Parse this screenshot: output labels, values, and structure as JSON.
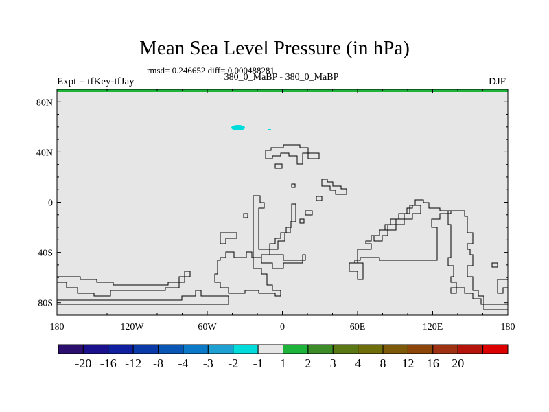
{
  "title": "Mean Sea Level Pressure (in hPa)",
  "stats": "rmsd= 0.246652 diff= 0.000488281",
  "subtitle": "380_0_MaBP - 380_0_MaBP",
  "left_label": "Expt = tfKey-tfJay",
  "right_label": "DJF",
  "map": {
    "background_color": "#e6e6e6",
    "coast_color": "#000000",
    "x_ticks": [
      "180",
      "120W",
      "60W",
      "0",
      "60E",
      "120E",
      "180"
    ],
    "y_ticks": [
      "80N",
      "40N",
      "0",
      "40S",
      "80S"
    ]
  },
  "colorbar": {
    "colors": [
      "#2c0e6e",
      "#1a0f8c",
      "#101ea0",
      "#0a3aa8",
      "#0a56b4",
      "#0a7ac8",
      "#1ea0d2",
      "#00dcdc",
      "#e6e6e6",
      "#1eb43c",
      "#3c8c28",
      "#5a7814",
      "#6e6e0a",
      "#7d5a0a",
      "#8c460a",
      "#a03214",
      "#b4140a",
      "#dc0000"
    ],
    "labels": [
      "-20",
      "-16",
      "-12",
      "-8",
      "-4",
      "-3",
      "-2",
      "-1",
      "1",
      "2",
      "3",
      "4",
      "8",
      "12",
      "16",
      "20"
    ]
  }
}
